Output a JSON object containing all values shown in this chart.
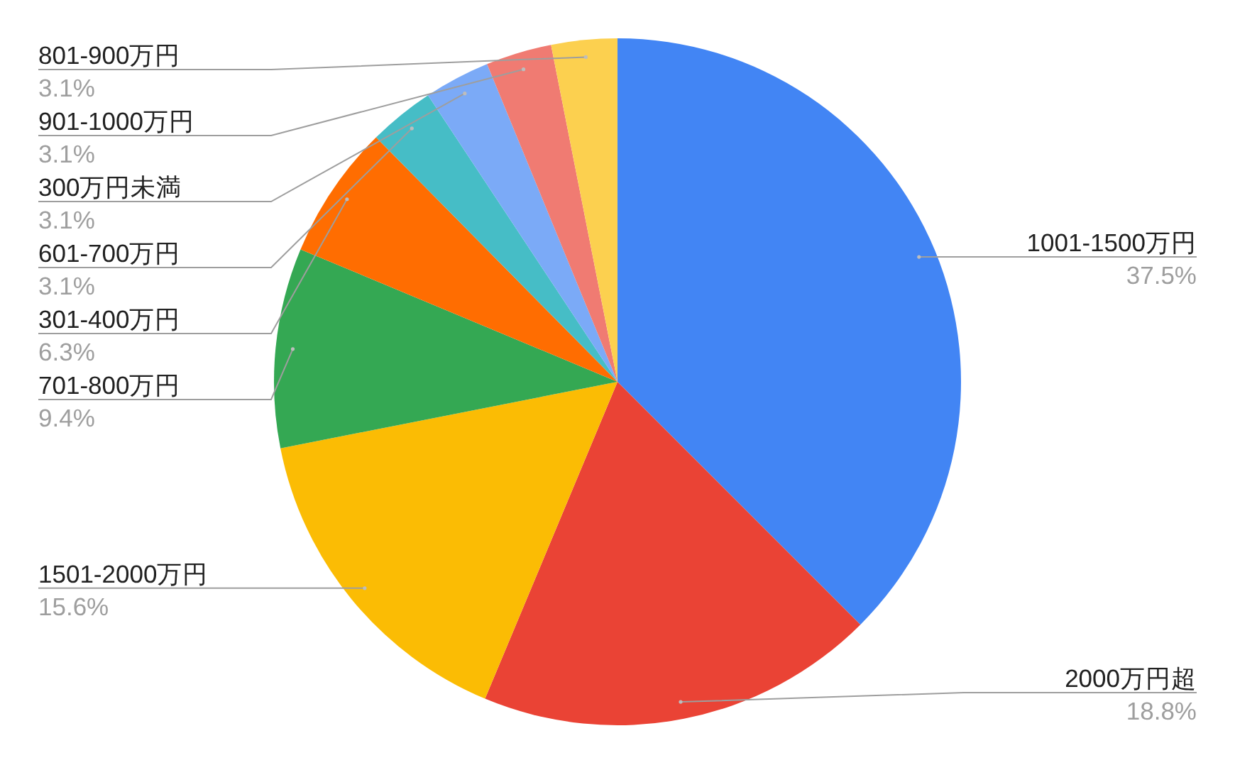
{
  "chart_data": {
    "type": "pie",
    "categories": [
      "1001-1500万円",
      "2000万円超",
      "1501-2000万円",
      "701-800万円",
      "301-400万円",
      "601-700万円",
      "300万円未満",
      "901-1000万円",
      "801-900万円"
    ],
    "values": [
      37.5,
      18.8,
      15.6,
      9.4,
      6.3,
      3.1,
      3.1,
      3.1,
      3.1
    ],
    "colors": [
      "#4285f4",
      "#ea4335",
      "#fbbc04",
      "#34a853",
      "#ff6d01",
      "#46bdc6",
      "#7baaf7",
      "#f07b72",
      "#fcd04f"
    ],
    "value_labels": [
      "37.5%",
      "18.8%",
      "15.6%",
      "9.4%",
      "6.3%",
      "3.1%",
      "3.1%",
      "3.1%",
      "3.1%"
    ]
  }
}
